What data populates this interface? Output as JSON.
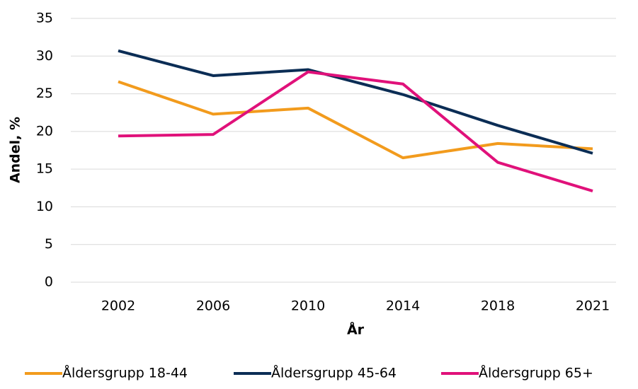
{
  "chart_data": {
    "type": "line",
    "y_label": "Andel, %",
    "x_label": "År",
    "categories": [
      "2002",
      "2006",
      "2010",
      "2014",
      "2018",
      "2021"
    ],
    "series": [
      {
        "name": "Åldersgrupp 18-44",
        "color": "#f29b1d",
        "values": [
          26.6,
          22.3,
          23.1,
          16.5,
          18.4,
          17.7
        ]
      },
      {
        "name": "Åldersgrupp 45-64",
        "color": "#0b2d55",
        "values": [
          30.7,
          27.4,
          28.2,
          24.9,
          20.8,
          17.1
        ]
      },
      {
        "name": "Åldersgrupp 65+",
        "color": "#e0117a",
        "values": [
          19.4,
          19.6,
          27.9,
          26.3,
          15.9,
          12.1
        ]
      }
    ],
    "ylim": [
      0,
      35
    ],
    "yticks": [
      0,
      5,
      10,
      15,
      20,
      25,
      30,
      35
    ],
    "grid": true
  }
}
